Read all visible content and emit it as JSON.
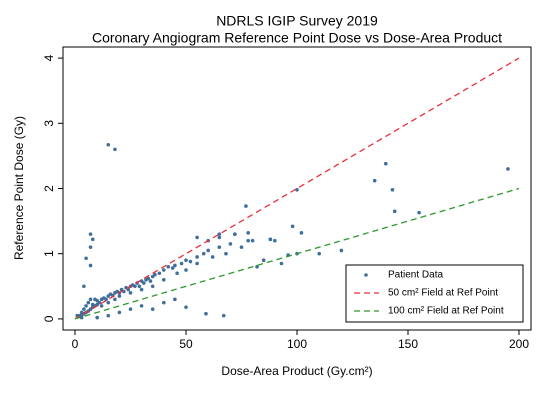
{
  "chart_data": {
    "type": "scatter",
    "title": "NDRLS IGIP Survey 2019",
    "subtitle": "Coronary Angiogram Reference Point Dose vs Dose-Area Product",
    "x_label": "Dose-Area Product (Gy.cm²)",
    "y_label": "Reference Point Dose (Gy)",
    "xlim": [
      -5.4,
      205.4
    ],
    "ylim": [
      -0.17,
      4.17
    ],
    "xticks": [
      0,
      50,
      100,
      150,
      200
    ],
    "yticks": [
      0,
      1,
      2,
      3,
      4
    ],
    "legend": "bottom-right",
    "series": [
      {
        "name": "Patient Data",
        "color": "#3f6f9a",
        "style": "points",
        "x": [
          1,
          2,
          3,
          3,
          4,
          4,
          5,
          5,
          6,
          6,
          7,
          7,
          8,
          8,
          9,
          9,
          10,
          10,
          11,
          12,
          12,
          13,
          14,
          15,
          15,
          16,
          17,
          18,
          18,
          19,
          20,
          20,
          21,
          22,
          23,
          24,
          25,
          25,
          26,
          27,
          28,
          29,
          30,
          30,
          31,
          32,
          33,
          34,
          35,
          35,
          36,
          38,
          40,
          40,
          42,
          44,
          45,
          46,
          48,
          50,
          50,
          52,
          55,
          55,
          58,
          60,
          62,
          65,
          65,
          68,
          70,
          72,
          75,
          77,
          78,
          80,
          82,
          85,
          88,
          90,
          93,
          96,
          98,
          100,
          100,
          102,
          110,
          120,
          135,
          140,
          143,
          144,
          155,
          195,
          15,
          18,
          7,
          8,
          7,
          5,
          7,
          4,
          59,
          67,
          50,
          45,
          40,
          35,
          30,
          25,
          20,
          15,
          10,
          3,
          2,
          55,
          60,
          65,
          72,
          78,
          88
        ],
        "values": [
          0.05,
          0.04,
          0.06,
          0.1,
          0.08,
          0.15,
          0.1,
          0.2,
          0.12,
          0.25,
          0.15,
          0.3,
          0.18,
          0.22,
          0.2,
          0.3,
          0.22,
          0.28,
          0.25,
          0.3,
          0.2,
          0.32,
          0.3,
          0.35,
          0.25,
          0.38,
          0.36,
          0.4,
          0.3,
          0.42,
          0.4,
          0.35,
          0.45,
          0.42,
          0.48,
          0.45,
          0.5,
          0.4,
          0.52,
          0.5,
          0.55,
          0.5,
          0.58,
          0.45,
          0.55,
          0.6,
          0.62,
          0.58,
          0.65,
          0.5,
          0.68,
          0.7,
          0.75,
          0.6,
          0.8,
          0.78,
          0.82,
          0.7,
          0.85,
          0.9,
          0.75,
          0.88,
          0.95,
          0.85,
          1.0,
          1.05,
          0.95,
          1.1,
          1.25,
          1.0,
          1.15,
          1.3,
          1.1,
          1.73,
          1.32,
          1.2,
          0.8,
          0.9,
          1.22,
          1.2,
          0.85,
          0.98,
          1.42,
          1.98,
          1.0,
          1.32,
          1.0,
          1.05,
          2.12,
          2.38,
          1.98,
          1.65,
          1.63,
          2.3,
          2.67,
          2.6,
          1.3,
          1.22,
          1.1,
          0.93,
          0.82,
          0.5,
          0.08,
          0.05,
          0.18,
          0.3,
          0.25,
          0.15,
          0.2,
          0.15,
          0.1,
          0.05,
          0.02,
          0.02,
          0.05,
          1.25,
          1.2,
          1.3,
          1.3,
          1.2,
          1.22
        ]
      },
      {
        "name": "50 cm² Field at Ref Point",
        "color": "#e8313a",
        "style": "dashed",
        "x": [
          0,
          200
        ],
        "values": [
          0,
          4
        ]
      },
      {
        "name": "100 cm² Field at Ref Point",
        "color": "#2e9a2e",
        "style": "dashed",
        "x": [
          0,
          200
        ],
        "values": [
          0,
          2
        ]
      }
    ]
  }
}
